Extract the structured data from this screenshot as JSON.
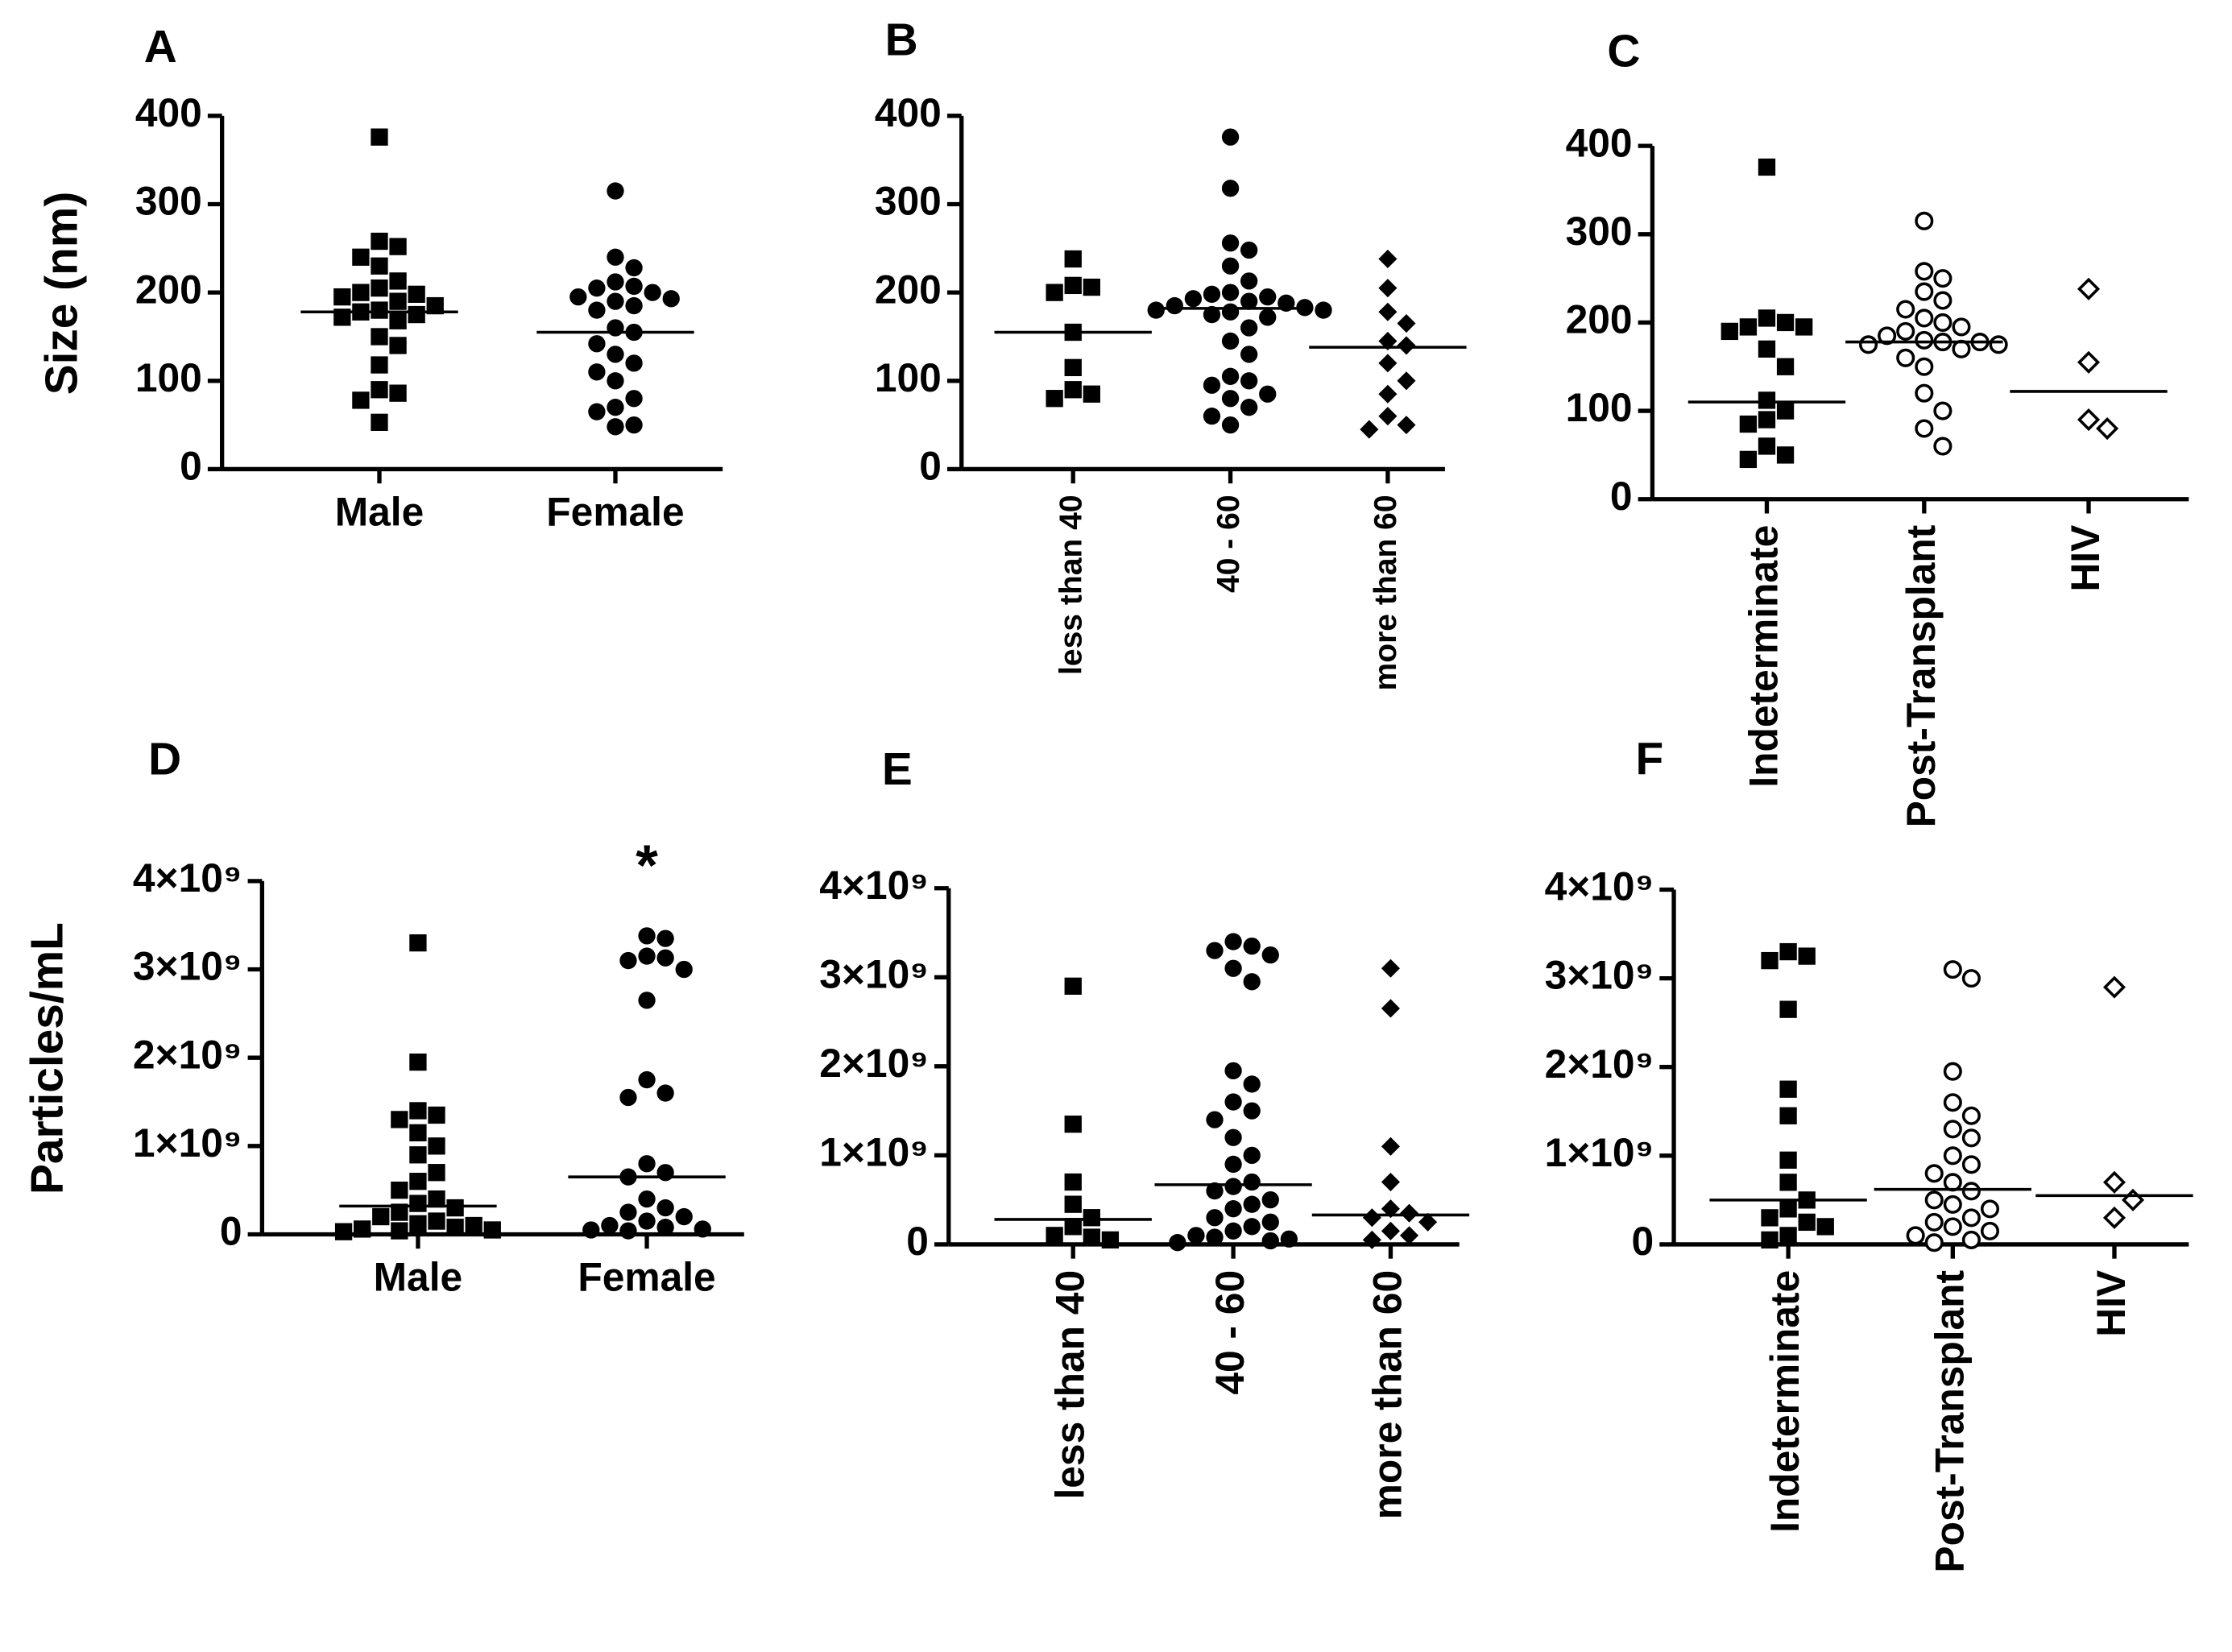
{
  "chart_data": [
    {
      "type": "dot",
      "panel": "A",
      "ylabel": "Size (nm)",
      "categories": [
        "Male",
        "Female"
      ],
      "values": [
        [
          376,
          258,
          252,
          240,
          230,
          213,
          205,
          200,
          198,
          195,
          190,
          185,
          180,
          178,
          175,
          172,
          168,
          150,
          140,
          118,
          90,
          86,
          78,
          53
        ],
        [
          315,
          240,
          228,
          212,
          207,
          205,
          200,
          195,
          193,
          190,
          185,
          180,
          160,
          155,
          142,
          130,
          120,
          110,
          100,
          80,
          70,
          65,
          50,
          48
        ]
      ],
      "means": [
        178,
        155
      ],
      "markers": [
        "square",
        "circle"
      ],
      "filled": [
        true,
        true
      ],
      "color": "#000000",
      "ylim": [
        0,
        400
      ],
      "yticks": [
        0,
        100,
        200,
        300,
        400
      ]
    },
    {
      "type": "dot",
      "panel": "B",
      "categories": [
        "less than 40",
        "40 - 60",
        "more than 60"
      ],
      "values": [
        [
          238,
          208,
          206,
          200,
          155,
          115,
          90,
          85,
          80
        ],
        [
          376,
          318,
          256,
          248,
          230,
          213,
          200,
          198,
          195,
          193,
          190,
          188,
          185,
          183,
          180,
          180,
          178,
          175,
          172,
          160,
          145,
          130,
          105,
          100,
          95,
          85,
          80,
          70,
          60,
          50
        ],
        [
          238,
          205,
          178,
          165,
          145,
          140,
          120,
          100,
          85,
          60,
          50,
          45
        ]
      ],
      "means": [
        155,
        182,
        138
      ],
      "markers": [
        "square",
        "circle",
        "diamond"
      ],
      "filled": [
        true,
        true,
        true
      ],
      "color": "#000000",
      "ylim": [
        0,
        400
      ],
      "yticks": [
        0,
        100,
        200,
        300,
        400
      ]
    },
    {
      "type": "dot",
      "panel": "C",
      "categories": [
        "Indeterminate",
        "Post-Transplant",
        "HIV"
      ],
      "values": [
        [
          376,
          205,
          200,
          195,
          195,
          190,
          170,
          150,
          112,
          100,
          90,
          85,
          60,
          50,
          45
        ],
        [
          315,
          258,
          250,
          235,
          225,
          215,
          205,
          200,
          195,
          190,
          185,
          180,
          178,
          178,
          175,
          175,
          170,
          160,
          150,
          120,
          100,
          80,
          60
        ],
        [
          238,
          155,
          90,
          80
        ]
      ],
      "means": [
        110,
        178,
        122
      ],
      "markers": [
        "square",
        "circle",
        "diamond"
      ],
      "filled": [
        true,
        false,
        false
      ],
      "color": "#000000",
      "ylim": [
        0,
        400
      ],
      "yticks": [
        0,
        100,
        200,
        300,
        400
      ]
    },
    {
      "type": "dot",
      "panel": "D",
      "ylabel": "Particles/mL",
      "annotation": "*",
      "categories": [
        "Male",
        "Female"
      ],
      "values": [
        [
          3300000000.0,
          1950000000.0,
          1400000000.0,
          1350000000.0,
          1300000000.0,
          1150000000.0,
          1000000000.0,
          900000000.0,
          700000000.0,
          600000000.0,
          500000000.0,
          400000000.0,
          350000000.0,
          300000000.0,
          250000000.0,
          200000000.0,
          150000000.0,
          120000000.0,
          100000000.0,
          80000000.0,
          60000000.0,
          50000000.0,
          40000000.0,
          30000000.0
        ],
        [
          3380000000.0,
          3350000000.0,
          3150000000.0,
          3130000000.0,
          3100000000.0,
          3000000000.0,
          2650000000.0,
          1750000000.0,
          1600000000.0,
          1550000000.0,
          800000000.0,
          700000000.0,
          650000000.0,
          400000000.0,
          300000000.0,
          250000000.0,
          200000000.0,
          150000000.0,
          100000000.0,
          80000000.0,
          60000000.0,
          50000000.0,
          40000000.0
        ]
      ],
      "means": [
        320000000.0,
        650000000.0
      ],
      "markers": [
        "square",
        "circle"
      ],
      "filled": [
        true,
        true
      ],
      "color": "#000000",
      "ylim": [
        0,
        4000000000.0
      ],
      "yticks": [
        0,
        {
          "value": 1000000000.0,
          "label": "1×10⁹"
        },
        {
          "value": 2000000000.0,
          "label": "2×10⁹"
        },
        {
          "value": 3000000000.0,
          "label": "3×10⁹"
        },
        {
          "value": 4000000000.0,
          "label": "4×10⁹"
        }
      ]
    },
    {
      "type": "dot",
      "panel": "E",
      "categories": [
        "less than 40",
        "40 - 60",
        "more than 60"
      ],
      "values": [
        [
          2900000000.0,
          1350000000.0,
          700000000.0,
          450000000.0,
          300000000.0,
          200000000.0,
          100000000.0,
          80000000.0,
          50000000.0
        ],
        [
          3400000000.0,
          3350000000.0,
          3300000000.0,
          3250000000.0,
          3100000000.0,
          2950000000.0,
          1950000000.0,
          1800000000.0,
          1600000000.0,
          1500000000.0,
          1400000000.0,
          1200000000.0,
          1000000000.0,
          900000000.0,
          700000000.0,
          650000000.0,
          600000000.0,
          500000000.0,
          450000000.0,
          400000000.0,
          300000000.0,
          250000000.0,
          200000000.0,
          150000000.0,
          100000000.0,
          80000000.0,
          60000000.0,
          40000000.0,
          20000000.0
        ],
        [
          3100000000.0,
          2650000000.0,
          1100000000.0,
          700000000.0,
          400000000.0,
          350000000.0,
          300000000.0,
          250000000.0,
          150000000.0,
          100000000.0,
          50000000.0
        ]
      ],
      "means": [
        280000000.0,
        670000000.0,
        330000000.0
      ],
      "markers": [
        "square",
        "circle",
        "diamond"
      ],
      "filled": [
        true,
        true,
        true
      ],
      "color": "#000000",
      "ylim": [
        0,
        4000000000.0
      ],
      "yticks": [
        0,
        {
          "value": 1000000000.0,
          "label": "1×10⁹"
        },
        {
          "value": 2000000000.0,
          "label": "2×10⁹"
        },
        {
          "value": 3000000000.0,
          "label": "3×10⁹"
        },
        {
          "value": 4000000000.0,
          "label": "4×10⁹"
        }
      ]
    },
    {
      "type": "dot",
      "panel": "F",
      "categories": [
        "Indeterminate",
        "Post-Transplant",
        "HIV"
      ],
      "values": [
        [
          3300000000.0,
          3250000000.0,
          3200000000.0,
          2650000000.0,
          1750000000.0,
          1450000000.0,
          950000000.0,
          700000000.0,
          500000000.0,
          400000000.0,
          300000000.0,
          250000000.0,
          200000000.0,
          100000000.0,
          50000000.0
        ],
        [
          3100000000.0,
          3000000000.0,
          1950000000.0,
          1600000000.0,
          1450000000.0,
          1300000000.0,
          1200000000.0,
          1000000000.0,
          900000000.0,
          800000000.0,
          700000000.0,
          600000000.0,
          500000000.0,
          450000000.0,
          400000000.0,
          300000000.0,
          250000000.0,
          200000000.0,
          150000000.0,
          100000000.0,
          50000000.0,
          20000000.0
        ],
        [
          2900000000.0,
          700000000.0,
          500000000.0,
          300000000.0
        ]
      ],
      "means": [
        500000000.0,
        620000000.0,
        550000000.0
      ],
      "markers": [
        "square",
        "circle",
        "diamond"
      ],
      "filled": [
        true,
        false,
        false
      ],
      "color": "#000000",
      "ylim": [
        0,
        4000000000.0
      ],
      "yticks": [
        0,
        {
          "value": 1000000000.0,
          "label": "1×10⁹"
        },
        {
          "value": 2000000000.0,
          "label": "2×10⁹"
        },
        {
          "value": 3000000000.0,
          "label": "3×10⁹"
        },
        {
          "value": 4000000000.0,
          "label": "4×10⁹"
        }
      ]
    }
  ]
}
